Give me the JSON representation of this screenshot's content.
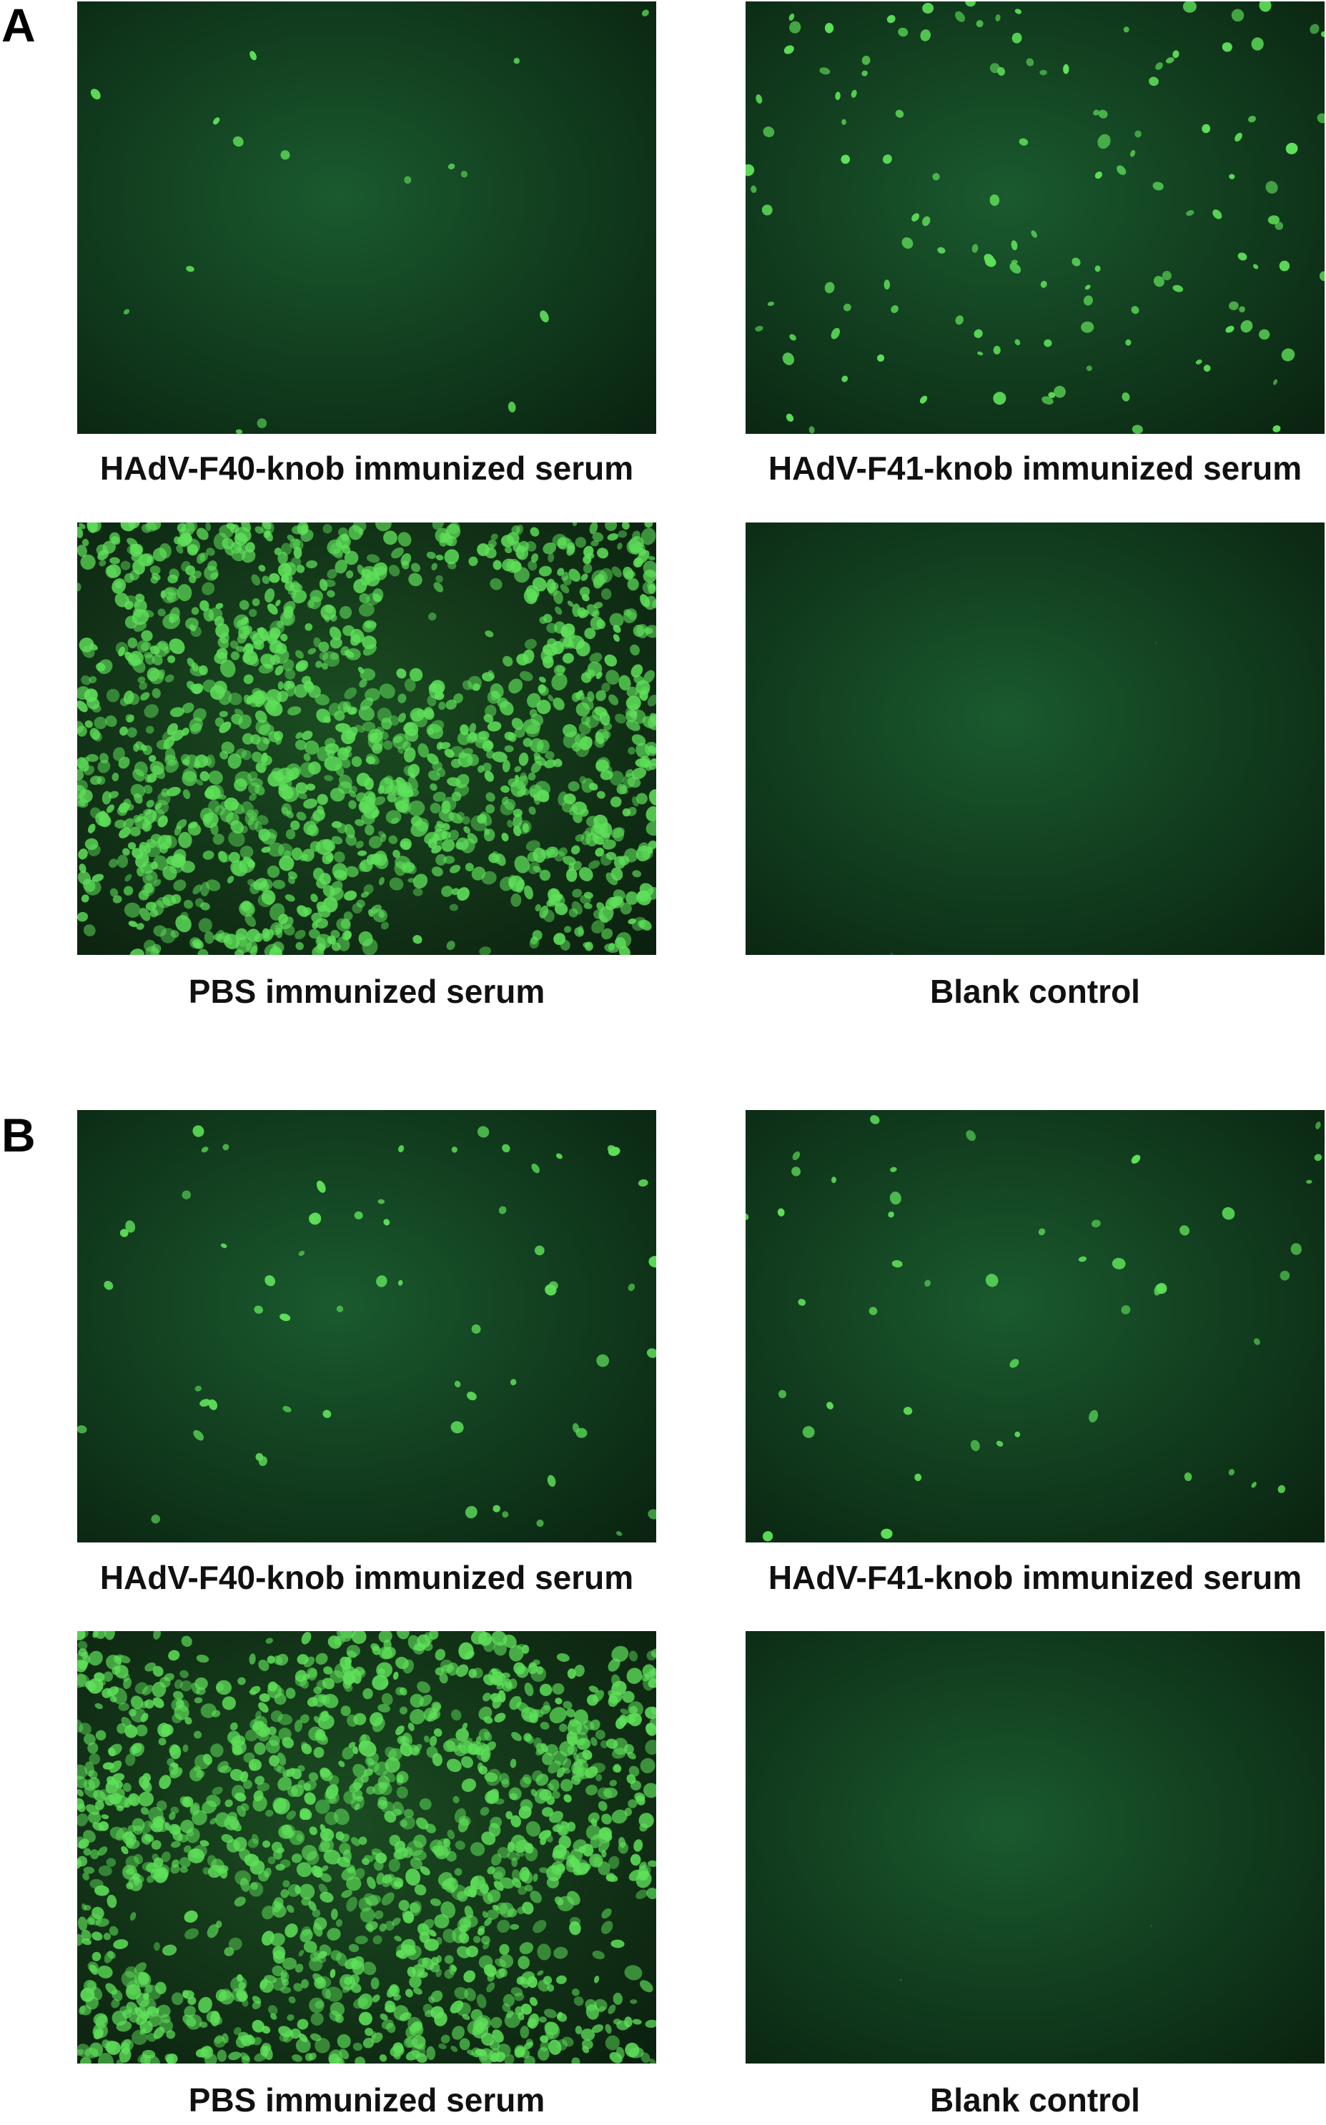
{
  "figure": {
    "panels": [
      {
        "letter": "A",
        "images": [
          {
            "caption": "HAdV-F40-knob immunized serum",
            "staining": "sparse"
          },
          {
            "caption": "HAdV-F41-knob immunized serum",
            "staining": "moderate"
          },
          {
            "caption": "PBS immunized serum",
            "staining": "confluent"
          },
          {
            "caption": "Blank control",
            "staining": "none"
          }
        ]
      },
      {
        "letter": "B",
        "images": [
          {
            "caption": "HAdV-F40-knob immunized serum",
            "staining": "sparse-moderate"
          },
          {
            "caption": "HAdV-F41-knob immunized serum",
            "staining": "sparse-moderate"
          },
          {
            "caption": "PBS immunized serum",
            "staining": "confluent"
          },
          {
            "caption": "Blank control",
            "staining": "none"
          }
        ]
      }
    ],
    "colors": {
      "background": "#0c2a14",
      "cell_fluorescence": "#5fe05a",
      "caption_text": "#111111"
    }
  }
}
